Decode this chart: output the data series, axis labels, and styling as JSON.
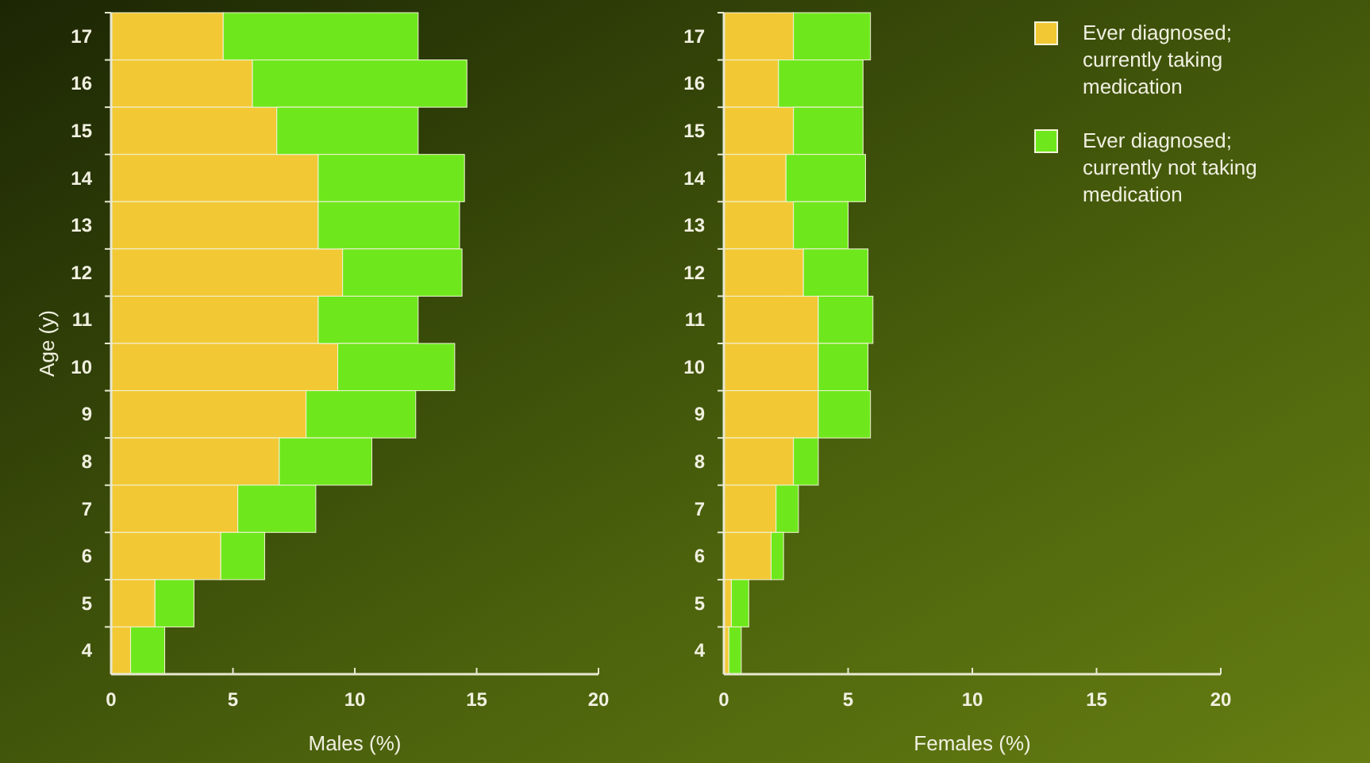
{
  "chart_data": [
    {
      "type": "bar",
      "orientation": "horizontal",
      "stacked": true,
      "xlabel": "Males (%)",
      "ylabel": "Age (y)",
      "categories": [
        "17",
        "16",
        "15",
        "14",
        "13",
        "12",
        "11",
        "10",
        "9",
        "8",
        "7",
        "6",
        "5",
        "4"
      ],
      "xlim": [
        0,
        20
      ],
      "xticks": [
        0,
        5,
        10,
        15,
        20
      ],
      "legend": false,
      "series": [
        {
          "color": "#f2c935",
          "values": [
            4.6,
            5.8,
            6.8,
            8.5,
            8.5,
            9.5,
            8.5,
            9.3,
            8.0,
            6.9,
            5.2,
            4.5,
            1.8,
            0.8
          ]
        },
        {
          "color": "#6ee81c",
          "values": [
            8.0,
            8.8,
            5.8,
            6.0,
            5.8,
            4.9,
            4.1,
            4.8,
            4.5,
            3.8,
            3.2,
            1.8,
            1.6,
            1.4
          ]
        }
      ]
    },
    {
      "type": "bar",
      "orientation": "horizontal",
      "stacked": true,
      "xlabel": "Females (%)",
      "categories": [
        "17",
        "16",
        "15",
        "14",
        "13",
        "12",
        "11",
        "10",
        "9",
        "8",
        "7",
        "6",
        "5",
        "4"
      ],
      "xlim": [
        0,
        20
      ],
      "xticks": [
        0,
        5,
        10,
        15,
        20
      ],
      "legend": "top right",
      "series": [
        {
          "name": "Ever diagnosed; currently taking medication",
          "color": "#f2c935",
          "values": [
            2.8,
            2.2,
            2.8,
            2.5,
            2.8,
            3.2,
            3.8,
            3.8,
            3.8,
            2.8,
            2.1,
            1.9,
            0.3,
            0.2
          ]
        },
        {
          "name": "Ever diagnosed; currently not taking medication",
          "color": "#6ee81c",
          "values": [
            3.1,
            3.4,
            2.8,
            3.2,
            2.2,
            2.6,
            2.2,
            2.0,
            2.1,
            1.0,
            0.9,
            0.5,
            0.7,
            0.5
          ]
        }
      ]
    }
  ]
}
